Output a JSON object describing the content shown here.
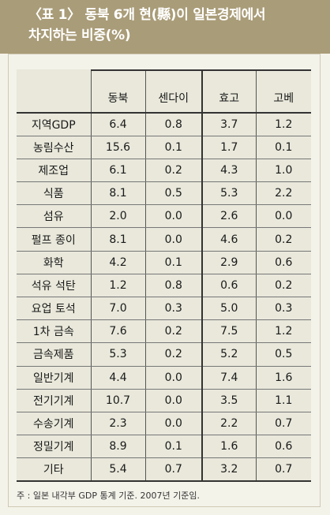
{
  "title": {
    "line1": "〈표 1〉 동북 6개 현(縣)이 일본경제에서",
    "line2": "차지하는 비중(%)"
  },
  "table": {
    "headers": [
      "",
      "동북",
      "센다이",
      "효고",
      "고베"
    ],
    "rows": [
      [
        "지역GDP",
        "6.4",
        "0.8",
        "3.7",
        "1.2"
      ],
      [
        "농림수산",
        "15.6",
        "0.1",
        "1.7",
        "0.1"
      ],
      [
        "제조업",
        "6.1",
        "0.2",
        "4.3",
        "1.0"
      ],
      [
        "식품",
        "8.1",
        "0.5",
        "5.3",
        "2.2"
      ],
      [
        "섬유",
        "2.0",
        "0.0",
        "2.6",
        "0.0"
      ],
      [
        "펄프 종이",
        "8.1",
        "0.0",
        "4.6",
        "0.2"
      ],
      [
        "화학",
        "4.2",
        "0.1",
        "2.9",
        "0.6"
      ],
      [
        "석유 석탄",
        "1.2",
        "0.8",
        "0.6",
        "0.2"
      ],
      [
        "요업 토석",
        "7.0",
        "0.3",
        "5.0",
        "0.3"
      ],
      [
        "1차 금속",
        "7.6",
        "0.2",
        "7.5",
        "1.2"
      ],
      [
        "금속제품",
        "5.3",
        "0.2",
        "5.2",
        "0.5"
      ],
      [
        "일반기계",
        "4.4",
        "0.0",
        "7.4",
        "1.6"
      ],
      [
        "전기기계",
        "10.7",
        "0.0",
        "3.5",
        "1.1"
      ],
      [
        "수송기계",
        "2.3",
        "0.0",
        "2.2",
        "0.7"
      ],
      [
        "정밀기계",
        "8.9",
        "0.1",
        "1.6",
        "0.6"
      ],
      [
        "기타",
        "5.4",
        "0.7",
        "3.2",
        "0.7"
      ]
    ]
  },
  "note": "주 : 일본 내각부 GDP 통계 기준. 2007년 기준임.",
  "colors": {
    "header_bg": "#a99c78",
    "page_bg": "#f4f3ea",
    "table_bg": "#e9e8db"
  }
}
